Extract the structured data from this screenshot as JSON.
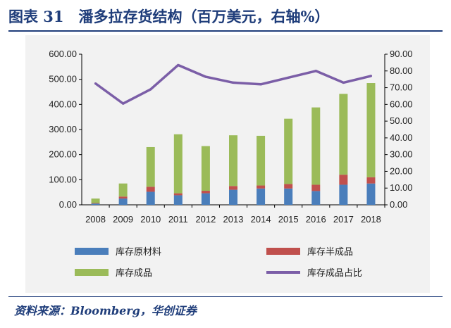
{
  "figure_title": "图表 31　潘多拉存货结构（百万美元，右轴%）",
  "source_note": "资料来源：Bloomberg，华创证券",
  "chart_data": {
    "type": "bar",
    "stacked": true,
    "categories": [
      "2008",
      "2009",
      "2010",
      "2011",
      "2012",
      "2013",
      "2014",
      "2015",
      "2016",
      "2017",
      "2018"
    ],
    "series": [
      {
        "name": "库存原材料",
        "kind": "bar",
        "axis": "left",
        "color": "#4a7ebb",
        "values": [
          5,
          25,
          52,
          38,
          46,
          60,
          65,
          65,
          55,
          80,
          85
        ]
      },
      {
        "name": "库存半成品",
        "kind": "bar",
        "axis": "left",
        "color": "#c0504d",
        "values": [
          2,
          8,
          20,
          8,
          10,
          15,
          12,
          18,
          25,
          40,
          25
        ]
      },
      {
        "name": "库存成品",
        "kind": "bar",
        "axis": "left",
        "color": "#9bbb59",
        "values": [
          18,
          52,
          158,
          235,
          178,
          202,
          198,
          260,
          308,
          322,
          375
        ]
      },
      {
        "name": "库存成品占比",
        "kind": "line",
        "axis": "right",
        "color": "#7b5ea7",
        "values": [
          72.5,
          60.5,
          69,
          83.5,
          76.5,
          73,
          72,
          76,
          80,
          73,
          77
        ]
      }
    ],
    "y_left": {
      "min": 0,
      "max": 600,
      "ticks": [
        "0.00",
        "100.00",
        "200.00",
        "300.00",
        "400.00",
        "500.00",
        "600.00"
      ]
    },
    "y_right": {
      "min": 0,
      "max": 90,
      "ticks": [
        "0.00",
        "10.00",
        "20.00",
        "30.00",
        "40.00",
        "50.00",
        "60.00",
        "70.00",
        "80.00",
        "90.00"
      ]
    },
    "legend": [
      "库存原材料",
      "库存半成品",
      "库存成品",
      "库存成品占比"
    ],
    "legend_position": "bottom"
  }
}
